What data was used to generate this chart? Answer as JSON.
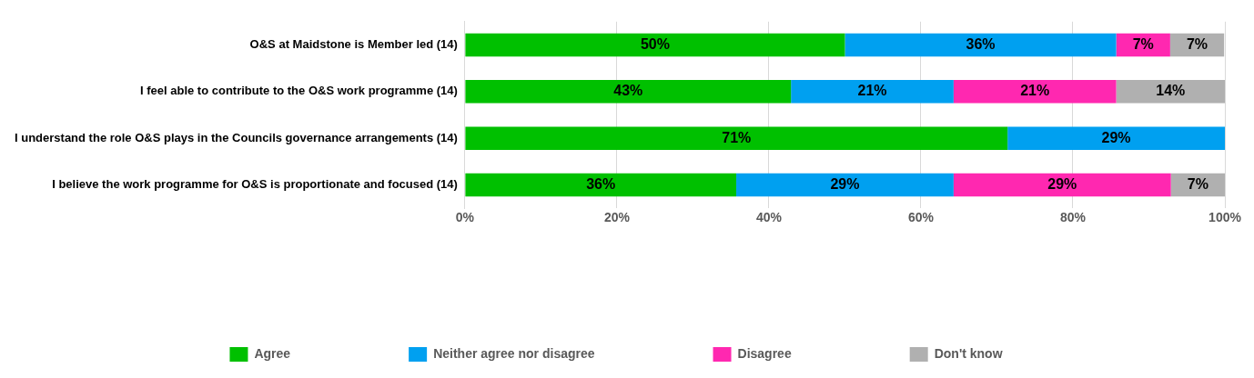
{
  "chart_data": {
    "type": "bar",
    "orientation": "horizontal",
    "stacked": true,
    "categories": [
      "O&S at Maidstone is Member led (14)",
      "I feel able to contribute to the O&S work programme (14)",
      "I understand the role O&S plays in the Councils governance arrangements (14)",
      "I believe the work programme for O&S is proportionate and focused (14)"
    ],
    "series": [
      {
        "name": "Agree",
        "color": "#00c000",
        "values": [
          50,
          42.9,
          71.4,
          35.7
        ],
        "value_labels": [
          "50%",
          "43%",
          "71%",
          "36%"
        ]
      },
      {
        "name": "Neither agree nor disagree",
        "color": "#00a0f0",
        "values": [
          35.7,
          21.4,
          28.6,
          28.6
        ],
        "value_labels": [
          "36%",
          "21%",
          "29%",
          "29%"
        ]
      },
      {
        "name": "Disagree",
        "color": "#ff28b0",
        "values": [
          7.1,
          21.4,
          null,
          28.6
        ],
        "value_labels": [
          "7%",
          "21%",
          null,
          "29%"
        ]
      },
      {
        "name": "Don't know",
        "color": "#b0b0b0",
        "values": [
          7.1,
          14.3,
          null,
          7.1
        ],
        "value_labels": [
          "7%",
          "14%",
          null,
          "7%"
        ]
      }
    ],
    "xlim": [
      0,
      100
    ],
    "xticks": [
      {
        "value": 0,
        "label": "0%"
      },
      {
        "value": 20,
        "label": "20%"
      },
      {
        "value": 40,
        "label": "40%"
      },
      {
        "value": 60,
        "label": "60%"
      },
      {
        "value": 80,
        "label": "80%"
      },
      {
        "value": 100,
        "label": "100%"
      }
    ],
    "grid": "x",
    "legend": "bottom"
  }
}
